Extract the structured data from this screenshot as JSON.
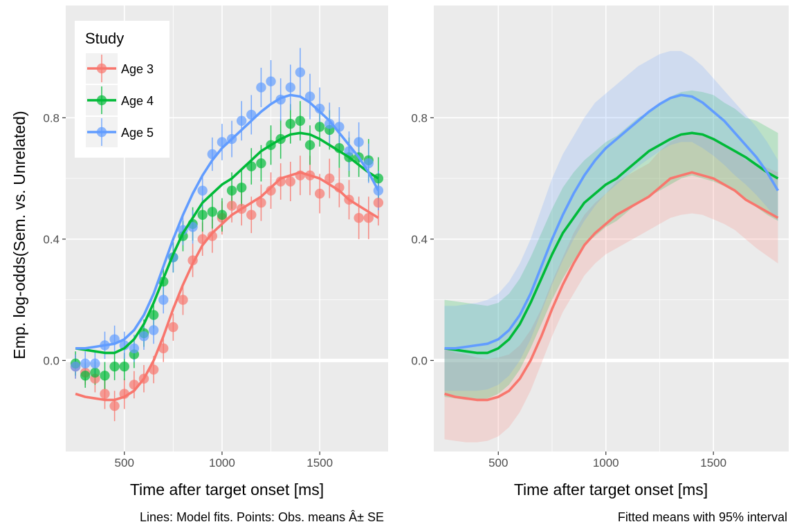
{
  "chart_data": [
    {
      "type": "line",
      "panel": "left",
      "xlabel": "Time after target onset [ms]",
      "ylabel": "Emp. log-odds(Sem. vs. Unrelated)",
      "caption": "Lines: Model fits. Points: Obs. means Â± SE",
      "xlim": [
        200,
        1850
      ],
      "ylim": [
        -0.3,
        1.17
      ],
      "xticks": [
        500,
        1000,
        1500
      ],
      "xtick_labels": [
        "500",
        "1000",
        "1500"
      ],
      "yticks": [
        0.0,
        0.4,
        0.8
      ],
      "ytick_labels": [
        "0.0",
        "0.4",
        "0.8"
      ],
      "hline": 0,
      "legend": {
        "title": "Study",
        "position": "top-left",
        "entries": [
          "Age 3",
          "Age 4",
          "Age 5"
        ]
      },
      "x": [
        250,
        300,
        350,
        400,
        450,
        500,
        550,
        600,
        650,
        700,
        750,
        800,
        850,
        900,
        950,
        1000,
        1050,
        1100,
        1150,
        1200,
        1250,
        1300,
        1350,
        1400,
        1450,
        1500,
        1550,
        1600,
        1650,
        1700,
        1750,
        1800
      ],
      "series": [
        {
          "name": "Age 3",
          "color": "#F8766D",
          "points": [
            -0.02,
            -0.04,
            -0.06,
            -0.11,
            -0.15,
            -0.11,
            -0.08,
            -0.06,
            -0.03,
            0.04,
            0.11,
            0.2,
            0.33,
            0.4,
            0.41,
            0.47,
            0.51,
            0.5,
            0.48,
            0.52,
            0.56,
            0.59,
            0.59,
            0.61,
            0.61,
            0.55,
            0.6,
            0.57,
            0.53,
            0.47,
            0.47,
            0.52
          ],
          "se": [
            0.04,
            0.04,
            0.045,
            0.05,
            0.05,
            0.05,
            0.045,
            0.045,
            0.045,
            0.045,
            0.045,
            0.05,
            0.055,
            0.055,
            0.055,
            0.055,
            0.055,
            0.055,
            0.06,
            0.06,
            0.06,
            0.06,
            0.065,
            0.065,
            0.065,
            0.065,
            0.065,
            0.065,
            0.065,
            0.07,
            0.07,
            0.075
          ],
          "fit": [
            -0.11,
            -0.12,
            -0.125,
            -0.13,
            -0.13,
            -0.12,
            -0.1,
            -0.06,
            0.0,
            0.08,
            0.17,
            0.25,
            0.32,
            0.38,
            0.42,
            0.45,
            0.48,
            0.5,
            0.52,
            0.54,
            0.57,
            0.6,
            0.61,
            0.62,
            0.61,
            0.6,
            0.58,
            0.56,
            0.53,
            0.51,
            0.49,
            0.47
          ],
          "ci_lower": [
            -0.26,
            -0.265,
            -0.27,
            -0.27,
            -0.265,
            -0.25,
            -0.22,
            -0.17,
            -0.1,
            -0.01,
            0.08,
            0.16,
            0.22,
            0.28,
            0.32,
            0.35,
            0.37,
            0.39,
            0.41,
            0.43,
            0.45,
            0.47,
            0.48,
            0.485,
            0.48,
            0.465,
            0.45,
            0.43,
            0.4,
            0.37,
            0.345,
            0.32
          ],
          "ci_upper": [
            0.04,
            0.025,
            0.02,
            0.01,
            0.005,
            0.01,
            0.02,
            0.05,
            0.1,
            0.17,
            0.26,
            0.34,
            0.42,
            0.48,
            0.52,
            0.55,
            0.59,
            0.61,
            0.63,
            0.65,
            0.69,
            0.72,
            0.74,
            0.755,
            0.745,
            0.735,
            0.71,
            0.69,
            0.66,
            0.65,
            0.635,
            0.62
          ]
        },
        {
          "name": "Age 4",
          "color": "#00BA38",
          "points": [
            -0.01,
            -0.05,
            -0.04,
            -0.05,
            -0.02,
            -0.02,
            0.02,
            0.09,
            0.15,
            0.26,
            0.34,
            0.41,
            0.45,
            0.48,
            0.49,
            0.48,
            0.56,
            0.57,
            0.64,
            0.65,
            0.71,
            0.73,
            0.78,
            0.79,
            0.71,
            0.77,
            0.76,
            0.7,
            0.67,
            0.67,
            0.66,
            0.6
          ],
          "se": [
            0.04,
            0.04,
            0.04,
            0.045,
            0.045,
            0.045,
            0.045,
            0.045,
            0.045,
            0.045,
            0.05,
            0.05,
            0.055,
            0.055,
            0.055,
            0.055,
            0.06,
            0.06,
            0.06,
            0.06,
            0.065,
            0.065,
            0.065,
            0.065,
            0.065,
            0.065,
            0.065,
            0.065,
            0.065,
            0.065,
            0.07,
            0.07
          ],
          "fit": [
            0.04,
            0.035,
            0.03,
            0.025,
            0.025,
            0.04,
            0.07,
            0.12,
            0.19,
            0.27,
            0.35,
            0.42,
            0.47,
            0.52,
            0.55,
            0.58,
            0.6,
            0.63,
            0.66,
            0.69,
            0.71,
            0.73,
            0.745,
            0.75,
            0.745,
            0.73,
            0.71,
            0.69,
            0.67,
            0.645,
            0.62,
            0.6
          ],
          "ci_lower": [
            -0.12,
            -0.125,
            -0.13,
            -0.13,
            -0.125,
            -0.11,
            -0.08,
            -0.03,
            0.04,
            0.12,
            0.2,
            0.27,
            0.33,
            0.38,
            0.41,
            0.44,
            0.46,
            0.49,
            0.52,
            0.54,
            0.56,
            0.58,
            0.6,
            0.61,
            0.6,
            0.59,
            0.575,
            0.555,
            0.53,
            0.505,
            0.48,
            0.46
          ],
          "ci_upper": [
            0.2,
            0.195,
            0.19,
            0.185,
            0.18,
            0.19,
            0.22,
            0.27,
            0.34,
            0.42,
            0.5,
            0.57,
            0.62,
            0.66,
            0.69,
            0.72,
            0.74,
            0.77,
            0.8,
            0.82,
            0.85,
            0.87,
            0.885,
            0.89,
            0.885,
            0.875,
            0.85,
            0.83,
            0.8,
            0.79,
            0.77,
            0.75
          ]
        },
        {
          "name": "Age 5",
          "color": "#619CFF",
          "points": [
            -0.02,
            -0.01,
            -0.01,
            0.05,
            0.07,
            0.05,
            0.04,
            0.08,
            0.1,
            0.2,
            0.34,
            0.43,
            0.44,
            0.56,
            0.68,
            0.72,
            0.73,
            0.79,
            0.81,
            0.9,
            0.92,
            0.86,
            0.9,
            0.95,
            0.87,
            0.83,
            0.78,
            0.77,
            0.69,
            0.72,
            0.65,
            0.56
          ],
          "se": [
            0.04,
            0.04,
            0.04,
            0.045,
            0.045,
            0.045,
            0.045,
            0.045,
            0.045,
            0.045,
            0.05,
            0.05,
            0.055,
            0.055,
            0.055,
            0.06,
            0.06,
            0.065,
            0.065,
            0.065,
            0.07,
            0.07,
            0.075,
            0.08,
            0.075,
            0.07,
            0.07,
            0.065,
            0.065,
            0.065,
            0.065,
            0.065
          ],
          "fit": [
            0.04,
            0.04,
            0.045,
            0.05,
            0.055,
            0.07,
            0.1,
            0.15,
            0.22,
            0.31,
            0.4,
            0.48,
            0.55,
            0.61,
            0.66,
            0.7,
            0.73,
            0.76,
            0.79,
            0.82,
            0.845,
            0.865,
            0.875,
            0.87,
            0.85,
            0.82,
            0.79,
            0.75,
            0.71,
            0.67,
            0.62,
            0.56
          ],
          "ci_lower": [
            -0.1,
            -0.1,
            -0.1,
            -0.1,
            -0.095,
            -0.08,
            -0.05,
            0.0,
            0.07,
            0.16,
            0.25,
            0.33,
            0.4,
            0.46,
            0.51,
            0.55,
            0.58,
            0.61,
            0.64,
            0.665,
            0.69,
            0.71,
            0.72,
            0.72,
            0.7,
            0.675,
            0.645,
            0.61,
            0.58,
            0.545,
            0.505,
            0.46
          ],
          "ci_upper": [
            0.18,
            0.18,
            0.185,
            0.19,
            0.2,
            0.22,
            0.26,
            0.32,
            0.4,
            0.5,
            0.6,
            0.68,
            0.74,
            0.8,
            0.85,
            0.88,
            0.91,
            0.94,
            0.97,
            0.99,
            1.01,
            1.02,
            1.02,
            1.0,
            0.97,
            0.93,
            0.89,
            0.85,
            0.81,
            0.77,
            0.72,
            0.66
          ]
        }
      ]
    },
    {
      "type": "area",
      "panel": "right",
      "xlabel": "Time after target onset [ms]",
      "ylabel": "",
      "caption": "Fitted means with 95% interval",
      "xlim": [
        200,
        1850
      ],
      "ylim": [
        -0.3,
        1.17
      ],
      "xticks": [
        500,
        1000,
        1500
      ],
      "xtick_labels": [
        "500",
        "1000",
        "1500"
      ],
      "yticks": [
        0.0,
        0.4,
        0.8
      ],
      "ytick_labels": [
        "0.0",
        "0.4",
        "0.8"
      ],
      "hline": 0,
      "uses_series_from": "left"
    }
  ]
}
